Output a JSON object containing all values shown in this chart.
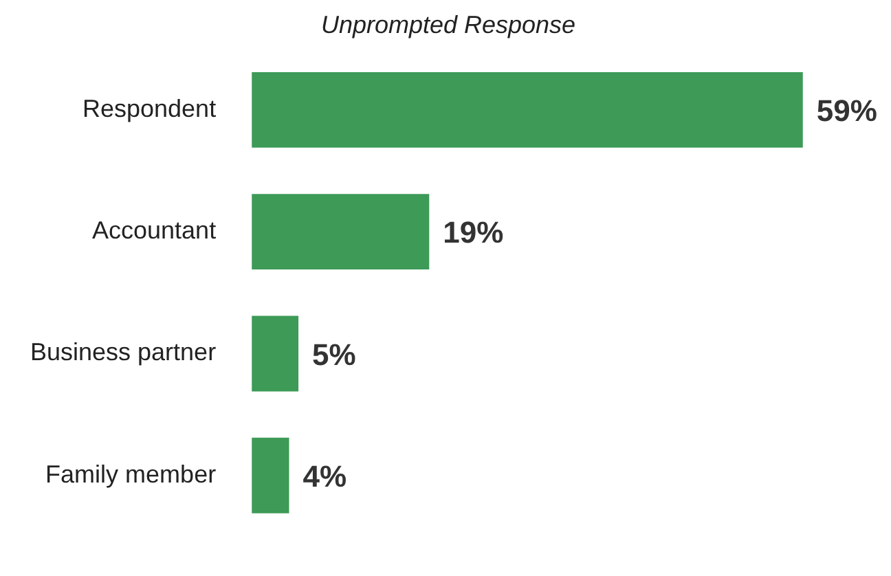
{
  "chart_data": {
    "type": "bar",
    "orientation": "horizontal",
    "title": "Unprompted Response",
    "categories": [
      "Respondent",
      "Accountant",
      "Business partner",
      "Family member"
    ],
    "values": [
      59,
      19,
      5,
      4
    ],
    "value_labels": [
      "59%",
      "19%",
      "5%",
      "4%"
    ],
    "color": "#3d9a57"
  }
}
